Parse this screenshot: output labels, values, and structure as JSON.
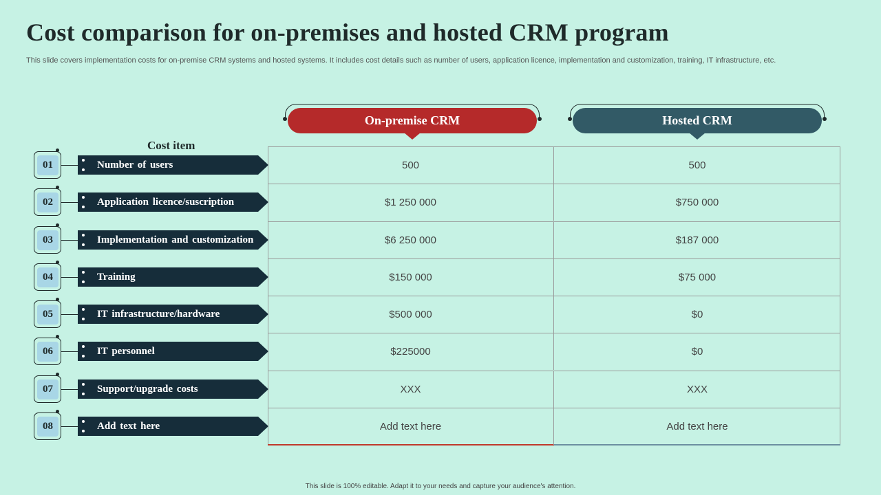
{
  "title": "Cost comparison  for on-premises  and hosted  CRM program",
  "subtitle": "This slide covers implementation costs for on-premise CRM systems and hosted systems. It includes cost details such as number of users, application licence, implementation and customization, training, IT infrastructure, etc.",
  "columns": {
    "cost_item": "Cost item",
    "on_premise": "On-premise CRM",
    "hosted": "Hosted CRM"
  },
  "rows": [
    {
      "num": "01",
      "label": "Number  of users",
      "on_premise": "500",
      "hosted": "500"
    },
    {
      "num": "02",
      "label": "Application  licence/suscription",
      "on_premise": "$1 250 000",
      "hosted": "$750 000"
    },
    {
      "num": "03",
      "label": "Implementation  and customization",
      "on_premise": "$6 250 000",
      "hosted": "$187 000"
    },
    {
      "num": "04",
      "label": "Training",
      "on_premise": "$150 000",
      "hosted": "$75 000"
    },
    {
      "num": "05",
      "label": "IT infrastructure/hardware",
      "on_premise": "$500 000",
      "hosted": "$0"
    },
    {
      "num": "06",
      "label": "IT personnel",
      "on_premise": "$225000",
      "hosted": "$0"
    },
    {
      "num": "07",
      "label": "Support/upgrade  costs",
      "on_premise": "XXX",
      "hosted": "XXX"
    },
    {
      "num": "08",
      "label": "Add  text here",
      "on_premise": "Add text here",
      "hosted": "Add text here"
    }
  ],
  "footer": "This slide is 100% editable.  Adapt it to your needs and capture your audience's attention.",
  "colors": {
    "background": "#c6f2e4",
    "on_premise_header": "#b52a2a",
    "hosted_header": "#325a66",
    "banner": "#162d3a",
    "number_badge": "#a8d6e6"
  }
}
